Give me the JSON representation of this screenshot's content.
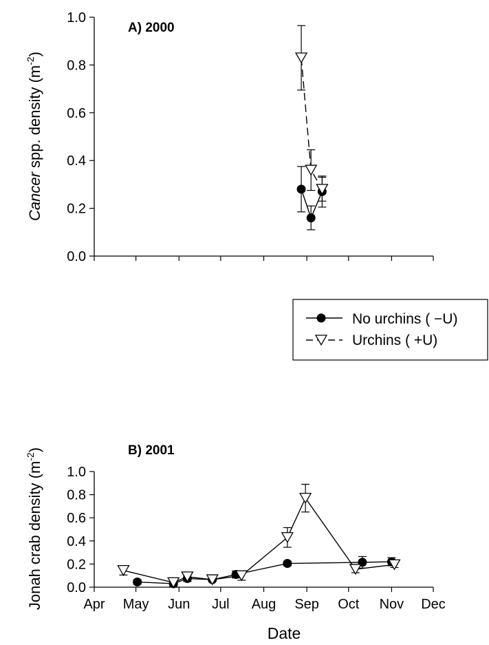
{
  "chart_data": [
    {
      "type": "line",
      "panel_label": "A) 2000",
      "title": "",
      "xlabel": "",
      "ylabel_italic": "Cancer",
      "ylabel_rest": " spp. density (m",
      "ylabel_sup": "-2",
      "ylabel_close": ")",
      "ylim": [
        0,
        1.0
      ],
      "yticks": [
        "0.0",
        "0.2",
        "0.4",
        "0.6",
        "0.8",
        "1.0"
      ],
      "xlim": [
        "2000-04-01",
        "2000-12-01"
      ],
      "show_x_tick_labels": false,
      "grid": false,
      "series": [
        {
          "name": "No urchins ( −U)",
          "marker": "filled-circle",
          "line": "solid",
          "x": [
            "2000-08-28",
            "2000-09-04",
            "2000-09-12"
          ],
          "y": [
            0.28,
            0.16,
            0.27
          ],
          "err": [
            0.095,
            0.05,
            0.065
          ]
        },
        {
          "name": "Urchins ( +U)",
          "marker": "open-triangle-down",
          "line": "dashed",
          "x": [
            "2000-08-28",
            "2000-09-04",
            "2000-09-12"
          ],
          "y": [
            0.83,
            0.36,
            0.28
          ],
          "err": [
            0.135,
            0.085,
            0.05
          ]
        }
      ]
    },
    {
      "type": "line",
      "panel_label": "B) 2001",
      "title": "",
      "xlabel": "Date",
      "ylabel_italic": "",
      "ylabel_rest": "Jonah crab density (m",
      "ylabel_sup": "-2",
      "ylabel_close": ")",
      "ylim": [
        0,
        1.0
      ],
      "yticks": [
        "0.0",
        "0.2",
        "0.4",
        "0.6",
        "0.8",
        "1.0"
      ],
      "xlim": [
        "2001-04-01",
        "2001-12-01"
      ],
      "xticks": [
        "Apr",
        "May",
        "Jun",
        "Jul",
        "Aug",
        "Sep",
        "Oct",
        "Nov",
        "Dec"
      ],
      "show_x_tick_labels": true,
      "grid": false,
      "series": [
        {
          "name": "No urchins ( −U)",
          "marker": "filled-circle",
          "line": "solid",
          "x": [
            "2001-05-02",
            "2001-05-28",
            "2001-06-07",
            "2001-06-25",
            "2001-07-12",
            "2001-08-18",
            "2001-10-11",
            "2001-11-01"
          ],
          "y": [
            0.045,
            0.03,
            0.075,
            0.065,
            0.11,
            0.205,
            0.215,
            0.22
          ],
          "err": [
            0.02,
            0.025,
            0.025,
            0.015,
            0.03,
            0.02,
            0.05,
            0.035
          ]
        },
        {
          "name": "Urchins ( +U)",
          "marker": "open-triangle-down",
          "line": "solid",
          "x": [
            "2001-04-22",
            "2001-05-28",
            "2001-06-07",
            "2001-06-25",
            "2001-07-16",
            "2001-08-18",
            "2001-08-31",
            "2001-10-06",
            "2001-11-03"
          ],
          "y": [
            0.145,
            0.04,
            0.09,
            0.065,
            0.1,
            0.43,
            0.77,
            0.155,
            0.195
          ],
          "err": [
            0.04,
            0.02,
            0.04,
            0.01,
            0.04,
            0.085,
            0.12,
            0.03,
            0.025
          ]
        }
      ]
    }
  ],
  "legend": {
    "placement": "between panels, right",
    "items": [
      {
        "label": "No urchins ( −U)",
        "marker": "filled-circle",
        "line": "solid"
      },
      {
        "label": "Urchins ( +U)",
        "marker": "open-triangle-down",
        "line": "dashed"
      }
    ]
  }
}
